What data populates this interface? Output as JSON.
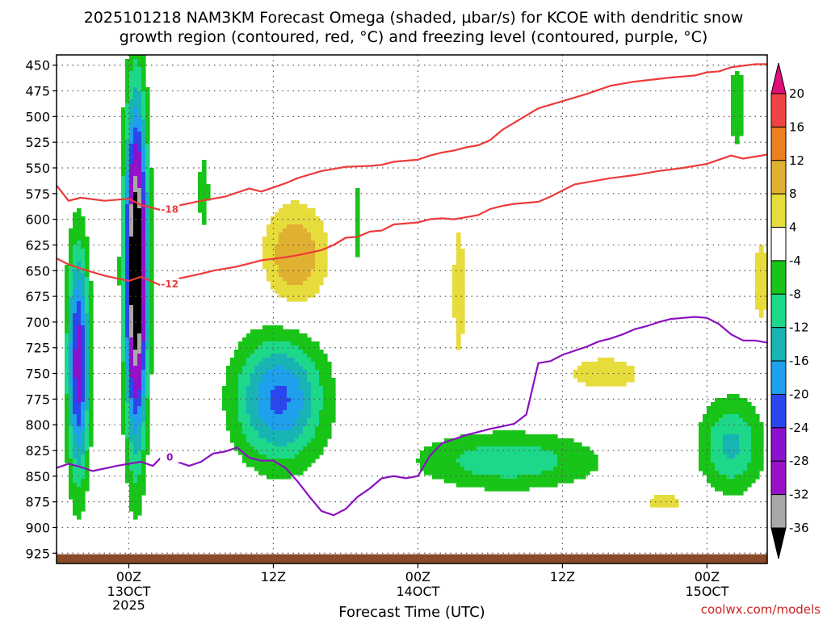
{
  "chart_data": {
    "type": "heatmap",
    "title_line1": "2025101218 NAM3KM Forecast Omega (shaded, µbar/s) for KCOE with dendritic snow",
    "title_line2": "growth region (contoured, red, °C) and freezing level (contoured, purple, °C)",
    "xlabel": "Forecast Time (UTC)",
    "credit": "coolwx.com/models",
    "x_range_hours": [
      -6,
      53
    ],
    "y_range_hpa": [
      440,
      935
    ],
    "y_ticks": [
      450,
      475,
      500,
      525,
      550,
      575,
      600,
      625,
      650,
      675,
      700,
      725,
      750,
      775,
      800,
      825,
      850,
      875,
      900,
      925
    ],
    "x_ticks": [
      {
        "hour": 0,
        "label": "00Z",
        "sub1": "13OCT",
        "sub2": "2025"
      },
      {
        "hour": 12,
        "label": "12Z",
        "sub1": "",
        "sub2": ""
      },
      {
        "hour": 24,
        "label": "00Z",
        "sub1": "14OCT",
        "sub2": ""
      },
      {
        "hour": 36,
        "label": "12Z",
        "sub1": "",
        "sub2": ""
      },
      {
        "hour": 48,
        "label": "00Z",
        "sub1": "15OCT",
        "sub2": ""
      }
    ],
    "colorbar": {
      "labels": [
        "20",
        "16",
        "12",
        "8",
        "4",
        "-4",
        "-8",
        "-12",
        "-16",
        "-20",
        "-24",
        "-28",
        "-32",
        "-36"
      ],
      "bins": [
        {
          "lo": 20,
          "hi": 24,
          "color": "#e0107a"
        },
        {
          "lo": 16,
          "hi": 20,
          "color": "#ee4444"
        },
        {
          "lo": 12,
          "hi": 16,
          "color": "#ea8020"
        },
        {
          "lo": 8,
          "hi": 12,
          "color": "#e0b030"
        },
        {
          "lo": 4,
          "hi": 8,
          "color": "#e6dc3c"
        },
        {
          "lo": -4,
          "hi": 4,
          "color": "#ffffff"
        },
        {
          "lo": -8,
          "hi": -4,
          "color": "#18c418"
        },
        {
          "lo": -12,
          "hi": -8,
          "color": "#1ed88a"
        },
        {
          "lo": -16,
          "hi": -12,
          "color": "#18b4b4"
        },
        {
          "lo": -20,
          "hi": -16,
          "color": "#1ea0ec"
        },
        {
          "lo": -24,
          "hi": -20,
          "color": "#2a46ec"
        },
        {
          "lo": -28,
          "hi": -24,
          "color": "#8a12cc"
        },
        {
          "lo": -32,
          "hi": -28,
          "color": "#9a10c8"
        },
        {
          "lo": -36,
          "hi": -32,
          "color": "#a8a8a8"
        },
        {
          "lo": -40,
          "hi": -36,
          "color": "#000000"
        }
      ]
    },
    "omega_features": [
      {
        "name": "strong-ascent-core",
        "t": 0.6,
        "p": 650,
        "dt": 0.9,
        "dp": 155,
        "peak": -46
      },
      {
        "name": "ascent-left-column",
        "t": -4.2,
        "p": 740,
        "dt": 0.9,
        "dp": 110,
        "peak": -27
      },
      {
        "name": "ascent-mid-maximum",
        "t": 12.5,
        "p": 775,
        "dt": 3.6,
        "dp": 60,
        "peak": -21
      },
      {
        "name": "ascent-lower-band",
        "t": 31.5,
        "p": 835,
        "dt": 7.5,
        "dp": 28,
        "peak": -11
      },
      {
        "name": "ascent-right-cell",
        "t": 50.0,
        "p": 820,
        "dt": 2.6,
        "dp": 45,
        "peak": -13
      },
      {
        "name": "ascent-upper-right",
        "t": 50.5,
        "p": 490,
        "dt": 1.0,
        "dp": 55,
        "peak": -6
      },
      {
        "name": "ascent-narrow-column",
        "t": 19.0,
        "p": 605,
        "dt": 0.5,
        "dp": 55,
        "peak": -6
      },
      {
        "name": "ascent-upper-column",
        "t": 6.2,
        "p": 575,
        "dt": 0.6,
        "dp": 50,
        "peak": -6
      },
      {
        "name": "descent-mid-level",
        "t": 13.8,
        "p": 635,
        "dt": 2.6,
        "dp": 50,
        "peak": 12
      },
      {
        "name": "descent-column",
        "t": 27.4,
        "p": 670,
        "dt": 0.5,
        "dp": 70,
        "peak": 8
      },
      {
        "name": "descent-band",
        "t": 39.5,
        "p": 750,
        "dt": 4.0,
        "dp": 22,
        "peak": 6
      },
      {
        "name": "descent-lower-right",
        "t": 44.5,
        "p": 875,
        "dt": 3.0,
        "dp": 15,
        "peak": 5
      },
      {
        "name": "descent-far-right",
        "t": 52.5,
        "p": 660,
        "dt": 0.9,
        "dp": 55,
        "peak": 6
      }
    ],
    "contours": [
      {
        "name": "dgz-minus-18",
        "label": "-18",
        "color": "#ee3a3a",
        "label_hour": 3.4,
        "points": [
          [
            -6,
            567
          ],
          [
            -5,
            582
          ],
          [
            -4,
            579
          ],
          [
            -2,
            582
          ],
          [
            0,
            580
          ],
          [
            1,
            586
          ],
          [
            3,
            592
          ],
          [
            4,
            587
          ],
          [
            6,
            582
          ],
          [
            8,
            578
          ],
          [
            10,
            570
          ],
          [
            11,
            573
          ],
          [
            13,
            565
          ],
          [
            14,
            560
          ],
          [
            16,
            553
          ],
          [
            18,
            549
          ],
          [
            20,
            548
          ],
          [
            21,
            547
          ],
          [
            22,
            544
          ],
          [
            24,
            542
          ],
          [
            25,
            538
          ],
          [
            26,
            535
          ],
          [
            27,
            533
          ],
          [
            28,
            530
          ],
          [
            29,
            528
          ],
          [
            30,
            523
          ],
          [
            31,
            513
          ],
          [
            32,
            506
          ],
          [
            33,
            499
          ],
          [
            34,
            492
          ],
          [
            36,
            485
          ],
          [
            38,
            478
          ],
          [
            40,
            470
          ],
          [
            42,
            466
          ],
          [
            45,
            462
          ],
          [
            47,
            460
          ],
          [
            48,
            457
          ],
          [
            49,
            456
          ],
          [
            50,
            452
          ],
          [
            52,
            449
          ],
          [
            53,
            449
          ]
        ]
      },
      {
        "name": "dgz-minus-12",
        "label": "-12",
        "color": "#ee3a3a",
        "label_hour": 3.4,
        "points": [
          [
            -6,
            638
          ],
          [
            -5,
            644
          ],
          [
            -4,
            648
          ],
          [
            -2,
            655
          ],
          [
            0,
            660
          ],
          [
            1,
            656
          ],
          [
            3,
            666
          ],
          [
            4,
            658
          ],
          [
            6,
            653
          ],
          [
            7,
            650
          ],
          [
            9,
            646
          ],
          [
            11,
            640
          ],
          [
            13,
            637
          ],
          [
            14,
            635
          ],
          [
            16,
            630
          ],
          [
            17,
            625
          ],
          [
            18,
            618
          ],
          [
            19,
            617
          ],
          [
            20,
            612
          ],
          [
            21,
            611
          ],
          [
            22,
            605
          ],
          [
            24,
            603
          ],
          [
            25,
            600
          ],
          [
            26,
            599
          ],
          [
            27,
            600
          ],
          [
            28,
            598
          ],
          [
            29,
            596
          ],
          [
            30,
            590
          ],
          [
            31,
            587
          ],
          [
            32,
            585
          ],
          [
            34,
            583
          ],
          [
            35,
            578
          ],
          [
            36,
            572
          ],
          [
            37,
            566
          ],
          [
            38,
            564
          ],
          [
            40,
            560
          ],
          [
            42,
            557
          ],
          [
            44,
            553
          ],
          [
            46,
            550
          ],
          [
            47,
            548
          ],
          [
            48,
            546
          ],
          [
            49,
            542
          ],
          [
            50,
            538
          ],
          [
            51,
            541
          ],
          [
            53,
            537
          ]
        ]
      },
      {
        "name": "freezing-level-0",
        "label": "0",
        "color": "#8a10c0",
        "label_hour": 3.4,
        "points": [
          [
            -6,
            842
          ],
          [
            -5,
            838
          ],
          [
            -4,
            841
          ],
          [
            -3,
            845
          ],
          [
            -1,
            840
          ],
          [
            0,
            838
          ],
          [
            1,
            836
          ],
          [
            2,
            840
          ],
          [
            3,
            828
          ],
          [
            4,
            836
          ],
          [
            5,
            840
          ],
          [
            6,
            836
          ],
          [
            7,
            828
          ],
          [
            8,
            826
          ],
          [
            9,
            822
          ],
          [
            10,
            832
          ],
          [
            11,
            835
          ],
          [
            12,
            835
          ],
          [
            13,
            842
          ],
          [
            14,
            855
          ],
          [
            15,
            870
          ],
          [
            16,
            884
          ],
          [
            17,
            888
          ],
          [
            18,
            882
          ],
          [
            19,
            870
          ],
          [
            20,
            862
          ],
          [
            21,
            852
          ],
          [
            22,
            850
          ],
          [
            23,
            852
          ],
          [
            24,
            850
          ],
          [
            25,
            830
          ],
          [
            26,
            818
          ],
          [
            28,
            810
          ],
          [
            30,
            804
          ],
          [
            32,
            799
          ],
          [
            33,
            790
          ],
          [
            34,
            740
          ],
          [
            35,
            738
          ],
          [
            36,
            732
          ],
          [
            37,
            728
          ],
          [
            38,
            724
          ],
          [
            39,
            719
          ],
          [
            40,
            716
          ],
          [
            41,
            712
          ],
          [
            42,
            707
          ],
          [
            43,
            704
          ],
          [
            44,
            700
          ],
          [
            45,
            697
          ],
          [
            46,
            696
          ],
          [
            47,
            695
          ],
          [
            48,
            696
          ],
          [
            49,
            702
          ],
          [
            50,
            712
          ],
          [
            51,
            718
          ],
          [
            52,
            718
          ],
          [
            53,
            720
          ]
        ]
      }
    ],
    "terrain_top_hpa": 926
  }
}
